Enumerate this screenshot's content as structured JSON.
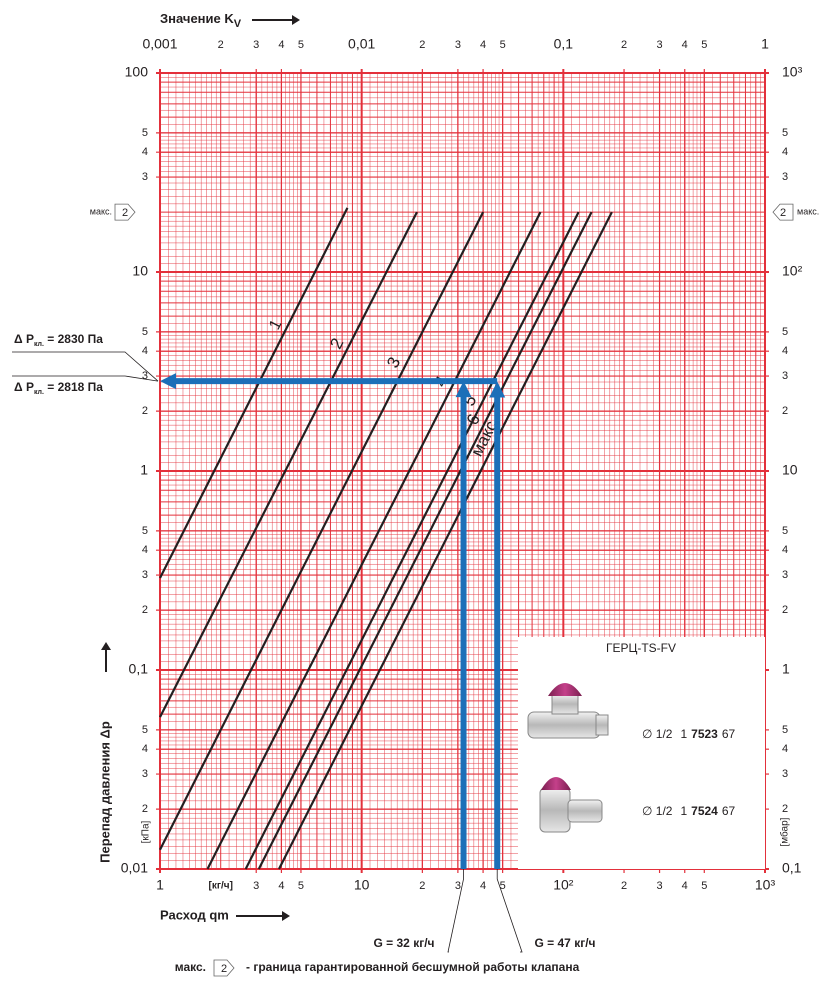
{
  "chart_data": {
    "type": "line",
    "x_scale": "log",
    "y_scale": "log",
    "x2label": "Значение K",
    "x2label_sub": "V",
    "xlabel": "Расход qm",
    "ylabel": "Перепад давления Δp",
    "x_unit": "[кг/ч]",
    "y_unit": "[кПа]",
    "y2_unit": "[мбар]",
    "xlim": [
      1,
      1000
    ],
    "ylim": [
      0.01,
      100
    ],
    "x2lim": [
      0.001,
      1
    ],
    "y2lim": [
      0.1,
      1000
    ],
    "xticks": [
      1,
      3,
      4,
      5,
      10,
      {
        "value": 20,
        "label": "2"
      },
      {
        "value": 30,
        "label": "3"
      },
      {
        "value": 40,
        "label": "4"
      },
      {
        "value": 50,
        "label": "5"
      },
      {
        "value": 100,
        "label": "10²"
      },
      {
        "value": 200,
        "label": "2"
      },
      {
        "value": 300,
        "label": "3"
      },
      {
        "value": 400,
        "label": "4"
      },
      {
        "value": 500,
        "label": "5"
      },
      {
        "value": 1000,
        "label": "10³"
      }
    ],
    "x2ticks": [
      {
        "value": 0.001,
        "label": "0,001"
      },
      {
        "value": 0.002,
        "label": "2"
      },
      {
        "value": 0.003,
        "label": "3"
      },
      {
        "value": 0.004,
        "label": "4"
      },
      {
        "value": 0.005,
        "label": "5"
      },
      {
        "value": 0.01,
        "label": "0,01"
      },
      {
        "value": 0.02,
        "label": "2"
      },
      {
        "value": 0.03,
        "label": "3"
      },
      {
        "value": 0.04,
        "label": "4"
      },
      {
        "value": 0.05,
        "label": "5"
      },
      {
        "value": 0.1,
        "label": "0,1"
      },
      {
        "value": 0.2,
        "label": "2"
      },
      {
        "value": 0.3,
        "label": "3"
      },
      {
        "value": 0.4,
        "label": "4"
      },
      {
        "value": 0.5,
        "label": "5"
      },
      1
    ],
    "yticks": [
      {
        "value": 0.01,
        "label": "0,01"
      },
      {
        "value": 0.02,
        "label": "2"
      },
      {
        "value": 0.03,
        "label": "3"
      },
      {
        "value": 0.04,
        "label": "4"
      },
      {
        "value": 0.05,
        "label": "5"
      },
      {
        "value": 0.1,
        "label": "0,1"
      },
      {
        "value": 0.2,
        "label": "2"
      },
      {
        "value": 0.3,
        "label": "3"
      },
      {
        "value": 0.4,
        "label": "4"
      },
      {
        "value": 0.5,
        "label": "5"
      },
      1,
      2,
      3,
      4,
      5,
      10,
      {
        "value": 30,
        "label": "3"
      },
      {
        "value": 40,
        "label": "4"
      },
      {
        "value": 50,
        "label": "5"
      },
      100
    ],
    "y2ticks": [
      {
        "value": 0.1,
        "label": "0,1"
      },
      {
        "value": 0.2,
        "label": "2"
      },
      {
        "value": 0.3,
        "label": "3"
      },
      {
        "value": 0.4,
        "label": "4"
      },
      {
        "value": 0.5,
        "label": "5"
      },
      1,
      2,
      3,
      4,
      5,
      10,
      {
        "value": 20,
        "label": "2"
      },
      {
        "value": 30,
        "label": "3"
      },
      {
        "value": 40,
        "label": "4"
      },
      {
        "value": 50,
        "label": "5"
      },
      {
        "value": 100,
        "label": "10²"
      },
      {
        "value": 300,
        "label": "3"
      },
      {
        "value": 400,
        "label": "4"
      },
      {
        "value": 500,
        "label": "5"
      },
      {
        "value": 1000,
        "label": "10³"
      }
    ],
    "grid": true,
    "grid_color": "#e3303b",
    "series": [
      {
        "name": "1",
        "color": "#231f20",
        "x": [
          1,
          8.5
        ],
        "values": [
          0.29,
          21
        ]
      },
      {
        "name": "2",
        "color": "#231f20",
        "x": [
          1,
          18.8
        ],
        "values": [
          0.058,
          20
        ]
      },
      {
        "name": "3",
        "color": "#231f20",
        "x": [
          1,
          40
        ],
        "values": [
          0.0125,
          20
        ]
      },
      {
        "name": "4",
        "color": "#231f20",
        "x": [
          1.72,
          77
        ],
        "values": [
          0.01,
          20
        ]
      },
      {
        "name": "5",
        "color": "#231f20",
        "x": [
          2.66,
          119
        ],
        "values": [
          0.01,
          20
        ]
      },
      {
        "name": "6",
        "color": "#231f20",
        "x": [
          3.09,
          138
        ],
        "values": [
          0.01,
          20
        ]
      },
      {
        "name": "макс",
        "color": "#231f20",
        "x": [
          3.89,
          174
        ],
        "values": [
          0.01,
          20
        ]
      }
    ],
    "noise_limit": {
      "label": "макс.",
      "setting": "2",
      "value": 20
    },
    "operating_points": [
      {
        "flow": 32,
        "dp": 2.83,
        "color": "#1c6fb8",
        "dp_label": {
          "text": "Δ P",
          "sub": "кл.",
          "value_text": " = 2830 Па"
        },
        "flow_label": "G = 32 кг/ч"
      },
      {
        "flow": 47,
        "dp": 2.818,
        "color": "#1c6fb8",
        "dp_label": {
          "text": "Δ P",
          "sub": "кл.",
          "value_text": " = 2818 Па"
        },
        "flow_label": "G = 47 кг/ч"
      }
    ],
    "footnote": {
      "label": "макс.",
      "setting": "2",
      "text": "- граница гарантированной бесшумной работы клапана"
    },
    "inset": {
      "title": "ГЕРЦ-TS-FV",
      "rows": [
        {
          "size": "∅ 1/2",
          "code_prefix": "1",
          "code_main": "7523",
          "code_suffix": "67"
        },
        {
          "size": "∅ 1/2",
          "code_prefix": "1",
          "code_main": "7524",
          "code_suffix": "67"
        }
      ]
    }
  }
}
